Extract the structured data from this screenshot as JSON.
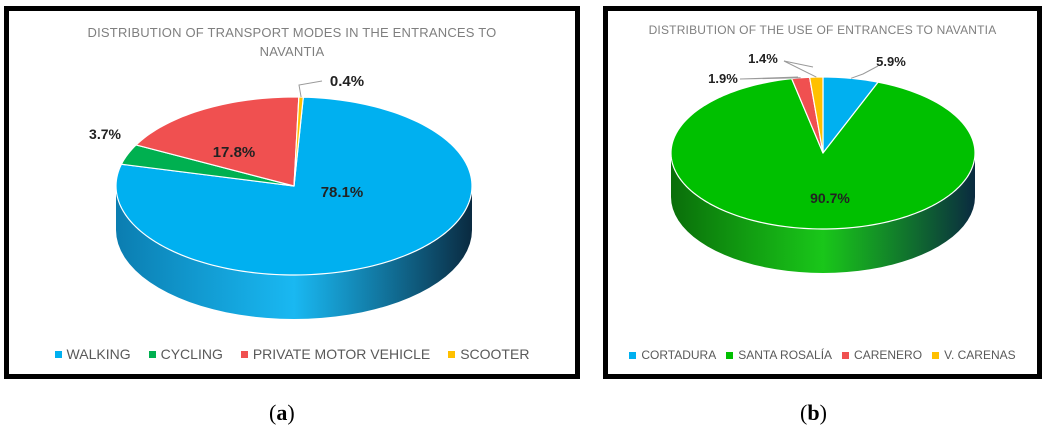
{
  "chart_data": [
    {
      "type": "pie",
      "title": "DISTRIBUTION OF TRANSPORT MODES IN THE ENTRANCES TO NAVANTIA",
      "categories": [
        "WALKING",
        "CYCLING",
        "PRIVATE MOTOR VEHICLE",
        "SCOOTER"
      ],
      "values": [
        78.1,
        3.7,
        17.8,
        0.4
      ],
      "labels": [
        "78.1%",
        "3.7%",
        "17.8%",
        "0.4%"
      ],
      "colors": [
        "#00b0f0",
        "#00b050",
        "#f05050",
        "#ffc000"
      ],
      "side_colors": [
        "#0b7db0",
        "#0b7a3b",
        "#b03838",
        "#b58900"
      ],
      "legend_position": "bottom",
      "style": "3d"
    },
    {
      "type": "pie",
      "title": "DISTRIBUTION OF THE USE OF ENTRANCES TO NAVANTIA",
      "categories": [
        "CORTADURA",
        "SANTA ROSALÍA",
        "CARENERO",
        "V. CARENAS"
      ],
      "values": [
        5.9,
        90.7,
        1.9,
        1.4
      ],
      "labels": [
        "5.9%",
        "90.7%",
        "1.9%",
        "1.4%"
      ],
      "colors": [
        "#00b0f0",
        "#00c000",
        "#f05050",
        "#ffc000"
      ],
      "side_colors": [
        "#0b7db0",
        "#0a6e0a",
        "#b03838",
        "#b58900"
      ],
      "legend_position": "bottom",
      "style": "3d"
    }
  ],
  "captions": {
    "a": "a",
    "b": "b"
  }
}
